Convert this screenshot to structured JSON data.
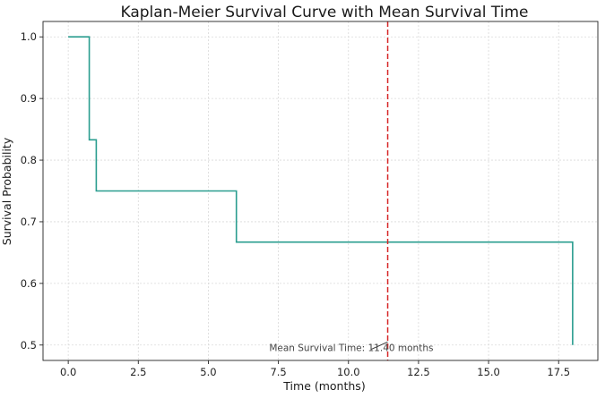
{
  "chart_data": {
    "type": "line",
    "title": "Kaplan-Meier Survival Curve with Mean Survival Time",
    "xlabel": "Time (months)",
    "ylabel": "Survival Probability",
    "xlim": [
      -0.9,
      18.9
    ],
    "ylim": [
      0.475,
      1.025
    ],
    "x_ticks": [
      0.0,
      2.5,
      5.0,
      7.5,
      10.0,
      12.5,
      15.0,
      17.5
    ],
    "x_tick_labels": [
      "0.0",
      "2.5",
      "5.0",
      "7.5",
      "10.0",
      "12.5",
      "15.0",
      "17.5"
    ],
    "y_ticks": [
      0.5,
      0.6,
      0.7,
      0.8,
      0.9,
      1.0
    ],
    "y_tick_labels": [
      "0.5",
      "0.6",
      "0.7",
      "0.8",
      "0.9",
      "1.0"
    ],
    "grid": true,
    "series": [
      {
        "style": "step-post",
        "color": "#2a9d8f",
        "x": [
          0.0,
          0.75,
          1.0,
          6.0,
          18.0
        ],
        "y": [
          1.0,
          0.833,
          0.75,
          0.667,
          0.5
        ]
      }
    ],
    "vlines": [
      {
        "x": 11.4,
        "color": "#d62728",
        "style": "dashed"
      }
    ],
    "annotations": [
      {
        "text": "Mean Survival Time: 11.40 months",
        "x": 10.1,
        "y": 0.49,
        "arrow_to": [
          11.4,
          0.505
        ]
      }
    ]
  }
}
